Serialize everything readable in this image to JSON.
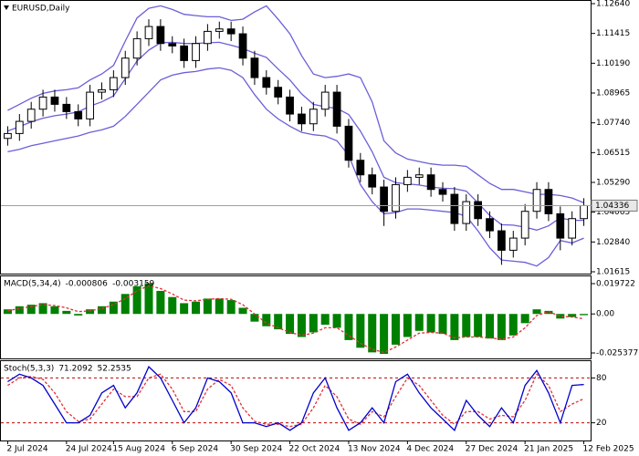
{
  "chart_data": [
    {
      "type": "candlestick",
      "title": "EURUSD,Daily",
      "categories": [
        "2 Jul 2024",
        null,
        null,
        null,
        null,
        "24 Jul 2024",
        null,
        null,
        null,
        "15 Aug 2024",
        null,
        null,
        null,
        null,
        "6 Sep 2024",
        null,
        null,
        null,
        null,
        "30 Sep 2024",
        null,
        null,
        null,
        null,
        "22 Oct 2024",
        null,
        null,
        null,
        null,
        "13 Nov 2024",
        null,
        null,
        null,
        null,
        "4 Dec 2024",
        null,
        null,
        null,
        null,
        "27 Dec 2024",
        null,
        null,
        null,
        null,
        "21 Jan 2025",
        null,
        null,
        null,
        null,
        "12 Feb 2025"
      ],
      "open": [
        1.071,
        1.073,
        1.078,
        1.083,
        1.088,
        1.085,
        1.082,
        1.079,
        1.09,
        1.091,
        1.096,
        1.104,
        1.112,
        1.117,
        1.11,
        1.109,
        1.103,
        1.11,
        1.115,
        1.116,
        1.114,
        1.104,
        1.096,
        1.092,
        1.088,
        1.081,
        1.077,
        1.083,
        1.09,
        1.076,
        1.062,
        1.056,
        1.051,
        1.041,
        1.052,
        1.055,
        1.056,
        1.05,
        1.048,
        1.036,
        1.045,
        1.038,
        1.033,
        1.025,
        1.03,
        1.041,
        1.05,
        1.04,
        1.03,
        1.038
      ],
      "high": [
        1.076,
        1.081,
        1.086,
        1.091,
        1.091,
        1.088,
        1.085,
        1.093,
        1.094,
        1.099,
        1.107,
        1.115,
        1.12,
        1.12,
        1.113,
        1.112,
        1.113,
        1.118,
        1.119,
        1.119,
        1.117,
        1.107,
        1.099,
        1.095,
        1.091,
        1.084,
        1.086,
        1.093,
        1.093,
        1.079,
        1.065,
        1.059,
        1.054,
        1.055,
        1.058,
        1.059,
        1.059,
        1.053,
        1.051,
        1.048,
        1.048,
        1.041,
        1.036,
        1.033,
        1.044,
        1.053,
        1.053,
        1.043,
        1.041,
        1.0464
      ],
      "low": [
        1.068,
        1.07,
        1.075,
        1.08,
        1.082,
        1.079,
        1.076,
        1.076,
        1.087,
        1.088,
        1.093,
        1.101,
        1.109,
        1.107,
        1.106,
        1.1,
        1.1,
        1.107,
        1.112,
        1.111,
        1.101,
        1.093,
        1.089,
        1.085,
        1.078,
        1.074,
        1.074,
        1.08,
        1.073,
        1.059,
        1.053,
        1.048,
        1.035,
        1.038,
        1.049,
        1.052,
        1.047,
        1.045,
        1.033,
        1.033,
        1.035,
        1.03,
        1.019,
        1.022,
        1.027,
        1.038,
        1.037,
        1.025,
        1.027,
        1.035
      ],
      "close": [
        1.073,
        1.078,
        1.083,
        1.088,
        1.085,
        1.082,
        1.079,
        1.09,
        1.091,
        1.096,
        1.104,
        1.112,
        1.117,
        1.11,
        1.109,
        1.103,
        1.11,
        1.115,
        1.116,
        1.114,
        1.104,
        1.096,
        1.092,
        1.088,
        1.081,
        1.077,
        1.083,
        1.09,
        1.076,
        1.062,
        1.056,
        1.051,
        1.041,
        1.052,
        1.055,
        1.056,
        1.05,
        1.048,
        1.036,
        1.045,
        1.038,
        1.033,
        1.025,
        1.03,
        1.041,
        1.05,
        1.04,
        1.03,
        1.038,
        1.04336
      ],
      "bands": {
        "upper": [
          1.0825,
          1.085,
          1.0875,
          1.0895,
          1.0905,
          1.091,
          1.0918,
          1.095,
          1.0975,
          1.101,
          1.111,
          1.1205,
          1.1245,
          1.1255,
          1.124,
          1.122,
          1.1215,
          1.121,
          1.121,
          1.1195,
          1.12,
          1.123,
          1.1255,
          1.12,
          1.114,
          1.105,
          1.0975,
          1.096,
          1.0965,
          1.0975,
          1.096,
          1.086,
          1.07,
          1.065,
          1.0625,
          1.0615,
          1.0605,
          1.06,
          1.06,
          1.0595,
          1.056,
          1.0525,
          1.05,
          1.05,
          1.049,
          1.048,
          1.048,
          1.0475,
          1.0465,
          1.0445
        ],
        "middle": [
          1.074,
          1.0758,
          1.0778,
          1.0793,
          1.0803,
          1.081,
          1.0819,
          1.0843,
          1.086,
          1.0885,
          1.0955,
          1.1028,
          1.1073,
          1.1103,
          1.1105,
          1.11,
          1.11,
          1.1103,
          1.1105,
          1.1093,
          1.108,
          1.106,
          1.1043,
          1.0995,
          1.095,
          1.0893,
          1.085,
          1.084,
          1.0833,
          1.0808,
          1.074,
          1.0655,
          1.055,
          1.0528,
          1.0523,
          1.0518,
          1.051,
          1.0505,
          1.0503,
          1.0493,
          1.0445,
          1.0393,
          1.0355,
          1.0353,
          1.0345,
          1.0333,
          1.035,
          1.0383,
          1.0373,
          1.0373
        ],
        "lower": [
          1.0655,
          1.0665,
          1.068,
          1.069,
          1.07,
          1.071,
          1.072,
          1.0735,
          1.0745,
          1.076,
          1.08,
          1.085,
          1.09,
          1.095,
          1.097,
          1.098,
          1.0985,
          1.0995,
          1.1,
          1.099,
          1.096,
          1.089,
          1.083,
          1.079,
          1.076,
          1.0735,
          1.0725,
          1.072,
          1.07,
          1.064,
          1.052,
          1.045,
          1.04,
          1.0405,
          1.042,
          1.042,
          1.0415,
          1.041,
          1.0405,
          1.039,
          1.033,
          1.026,
          1.021,
          1.0205,
          1.02,
          1.0185,
          1.022,
          1.029,
          1.028,
          1.03
        ],
        "color": "#6a5fd8"
      },
      "up_color": "#ffffff",
      "down_color": "#000000",
      "last_price": 1.04336,
      "ylim": [
        1.01615,
        1.1264
      ],
      "yticks": [
        {
          "value": 1.1264,
          "label": "1.12640"
        },
        1.11415,
        {
          "value": 1.1019,
          "label": "1.10190"
        },
        1.08965,
        {
          "value": 1.0774,
          "label": "1.07740"
        },
        1.06515,
        {
          "value": 1.0529,
          "label": "1.05290"
        },
        1.04065,
        {
          "value": 1.0284,
          "label": "1.02840"
        },
        1.01615
      ]
    },
    {
      "type": "macd",
      "title": "MACD(5,34,4)",
      "histogram": [
        0.003,
        0.005,
        0.006,
        0.007,
        0.005,
        0.002,
        -0.001,
        0.003,
        0.005,
        0.008,
        0.013,
        0.018,
        0.02,
        0.015,
        0.011,
        0.007,
        0.008,
        0.01,
        0.01,
        0.009,
        0.004,
        -0.005,
        -0.008,
        -0.01,
        -0.013,
        -0.015,
        -0.012,
        -0.007,
        -0.009,
        -0.017,
        -0.022,
        -0.025,
        -0.026,
        -0.02,
        -0.015,
        -0.011,
        -0.012,
        -0.013,
        -0.017,
        -0.015,
        -0.015,
        -0.016,
        -0.017,
        -0.014,
        -0.006,
        0.003,
        0.002,
        -0.003,
        -0.002,
        -0.000806
      ],
      "signal": [
        0.002,
        0.0035,
        0.0048,
        0.006,
        0.0055,
        0.004,
        0.0015,
        0.002,
        0.0035,
        0.006,
        0.01,
        0.015,
        0.0185,
        0.0165,
        0.013,
        0.009,
        0.0085,
        0.0095,
        0.01,
        0.0095,
        0.006,
        0.0,
        -0.006,
        -0.009,
        -0.012,
        -0.014,
        -0.0125,
        -0.009,
        -0.009,
        -0.014,
        -0.019,
        -0.023,
        -0.025,
        -0.0215,
        -0.017,
        -0.0125,
        -0.012,
        -0.0125,
        -0.0155,
        -0.015,
        -0.015,
        -0.0155,
        -0.0165,
        -0.015,
        -0.009,
        -0.001,
        0.0015,
        -0.0015,
        -0.002,
        -0.003159
      ],
      "histogram_color": "#008000",
      "signal_color": "#e0303c",
      "ylim": [
        -0.025377,
        0.019722
      ],
      "yticks": [
        0.019722,
        {
          "value": 0,
          "label": "0.00"
        },
        -0.025377
      ]
    },
    {
      "type": "stochastic",
      "title": "Stoch(5,3,3)",
      "main": [
        75,
        85,
        80,
        70,
        45,
        20,
        20,
        30,
        60,
        70,
        40,
        60,
        95,
        80,
        50,
        20,
        40,
        80,
        75,
        60,
        20,
        20,
        15,
        20,
        10,
        20,
        60,
        80,
        40,
        10,
        20,
        40,
        20,
        75,
        85,
        60,
        40,
        25,
        10,
        50,
        30,
        15,
        40,
        20,
        70,
        90,
        60,
        20,
        70,
        71.2092
      ],
      "signal": [
        70,
        80,
        82,
        78,
        60,
        35,
        22,
        25,
        45,
        65,
        55,
        55,
        80,
        85,
        65,
        35,
        35,
        65,
        78,
        70,
        40,
        22,
        18,
        18,
        15,
        18,
        40,
        70,
        55,
        25,
        18,
        35,
        28,
        55,
        80,
        70,
        50,
        30,
        18,
        35,
        35,
        25,
        30,
        28,
        50,
        85,
        70,
        35,
        45,
        52.2535
      ],
      "main_color": "#0000cc",
      "signal_color": "#e0303c",
      "level_color": "#c00000",
      "ylim": [
        0,
        100
      ],
      "yticks": [
        80,
        20
      ]
    }
  ]
}
